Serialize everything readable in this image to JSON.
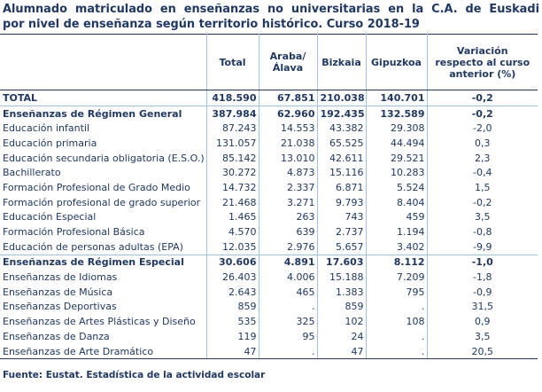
{
  "title": {
    "line1": "Alumnado matriculado en enseñanzas no universitarias en la C.A. de Euskadi",
    "line2": "por nivel de enseñanza según territorio histórico. Curso 2018-19"
  },
  "table": {
    "headers": [
      "",
      "Total",
      "Araba/Álava",
      "Bizkaia",
      "Gipuzkoa",
      "Variación respecto al curso anterior (%)"
    ],
    "rows": [
      {
        "label": "TOTAL",
        "total": "418.590",
        "araba": "67.851",
        "bizkaia": "210.038",
        "gipuzkoa": "140.701",
        "var": "-0,2",
        "bold": true,
        "sep": true
      },
      {
        "label": "Enseñanzas de Régimen General",
        "total": "387.984",
        "araba": "62.960",
        "bizkaia": "192.435",
        "gipuzkoa": "132.589",
        "var": "-0,2",
        "bold": true,
        "sep": true
      },
      {
        "label": "Educación infantil",
        "total": "87.243",
        "araba": "14.553",
        "bizkaia": "43.382",
        "gipuzkoa": "29.308",
        "var": "-2,0"
      },
      {
        "label": "Educación primaria",
        "total": "131.057",
        "araba": "21.038",
        "bizkaia": "65.525",
        "gipuzkoa": "44.494",
        "var": "0,3"
      },
      {
        "label": "Educación secundaria obligatoria (E.S.O.)",
        "total": "85.142",
        "araba": "13.010",
        "bizkaia": "42.611",
        "gipuzkoa": "29.521",
        "var": "2,3"
      },
      {
        "label": "Bachillerato",
        "total": "30.272",
        "araba": "4.873",
        "bizkaia": "15.116",
        "gipuzkoa": "10.283",
        "var": "-0,4"
      },
      {
        "label": "Formación Profesional de Grado Medio",
        "total": "14.732",
        "araba": "2.337",
        "bizkaia": "6.871",
        "gipuzkoa": "5.524",
        "var": "1,5"
      },
      {
        "label": "Formación profesional de grado superior",
        "total": "21.468",
        "araba": "3.271",
        "bizkaia": "9.793",
        "gipuzkoa": "8.404",
        "var": "-0,2"
      },
      {
        "label": "Educación Especial",
        "total": "1.465",
        "araba": "263",
        "bizkaia": "743",
        "gipuzkoa": "459",
        "var": "3,5"
      },
      {
        "label": "Formación Profesional Básica",
        "total": "4.570",
        "araba": "639",
        "bizkaia": "2.737",
        "gipuzkoa": "1.194",
        "var": "-0,8"
      },
      {
        "label": "Educación de personas adultas (EPA)",
        "total": "12.035",
        "araba": "2.976",
        "bizkaia": "5.657",
        "gipuzkoa": "3.402",
        "var": "-9,9"
      },
      {
        "label": "Enseñanzas de Régimen Especial",
        "total": "30.606",
        "araba": "4.891",
        "bizkaia": "17.603",
        "gipuzkoa": "8.112",
        "var": "-1,0",
        "bold": true,
        "sep": true
      },
      {
        "label": "Enseñanzas de Idiomas",
        "total": "26.403",
        "araba": "4.006",
        "bizkaia": "15.188",
        "gipuzkoa": "7.209",
        "var": "-1,8"
      },
      {
        "label": "Enseñanzas de Música",
        "total": "2.643",
        "araba": "465",
        "bizkaia": "1.383",
        "gipuzkoa": "795",
        "var": "-0,9"
      },
      {
        "label": "Enseñanzas Deportivas",
        "total": "859",
        "araba": ".",
        "bizkaia": "859",
        "gipuzkoa": ".",
        "var": "31,5"
      },
      {
        "label": "Enseñanzas de Artes Plásticas y Diseño",
        "total": "535",
        "araba": "325",
        "bizkaia": "102",
        "gipuzkoa": "108",
        "var": "0,9"
      },
      {
        "label": "Enseñanzas de Danza",
        "total": "119",
        "araba": "95",
        "bizkaia": "24",
        "gipuzkoa": ".",
        "var": "3,5"
      },
      {
        "label": "Enseñanzas de Arte Dramático",
        "total": "47",
        "araba": ".",
        "bizkaia": "47",
        "gipuzkoa": ".",
        "var": "20,5"
      }
    ]
  },
  "source": "Fuente: Eustat. Estadística de la actividad escolar"
}
